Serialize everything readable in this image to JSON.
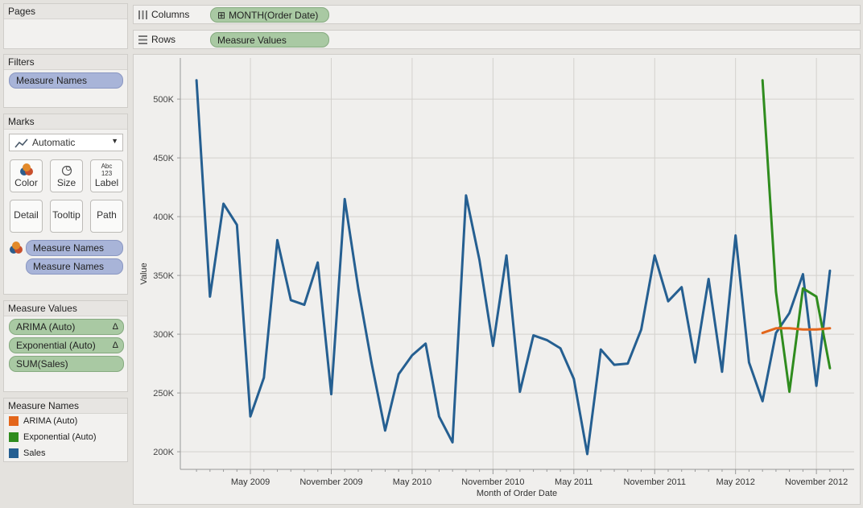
{
  "pages": {
    "title": "Pages"
  },
  "filters": {
    "title": "Filters",
    "pill": "Measure Names"
  },
  "marks": {
    "title": "Marks",
    "dropdown": "Automatic",
    "buttons": [
      "Color",
      "Size",
      "Label",
      "Detail",
      "Tooltip",
      "Path"
    ],
    "label_icon_text": "Abc 123",
    "pills": [
      "Measure Names",
      "Measure Names"
    ]
  },
  "measure_values": {
    "title": "Measure Values",
    "pills": [
      "ARIMA (Auto)",
      "Exponential (Auto)",
      "SUM(Sales)"
    ],
    "delta_glyph": "Δ"
  },
  "legend": {
    "title": "Measure Names",
    "items": [
      {
        "label": "ARIMA (Auto)",
        "color": "#e3661b"
      },
      {
        "label": "Exponential (Auto)",
        "color": "#2f8c1e"
      },
      {
        "label": "Sales",
        "color": "#255f91"
      }
    ]
  },
  "columns_shelf": {
    "label": "Columns",
    "pill": "MONTH(Order Date)",
    "pill_prefix": "⊞"
  },
  "rows_shelf": {
    "label": "Rows",
    "pill": "Measure Values"
  },
  "chart_data": {
    "type": "line",
    "xlabel": "Month of Order Date",
    "ylabel": "Value",
    "ylim": [
      185000,
      535000
    ],
    "yticks": [
      200000,
      250000,
      300000,
      350000,
      400000,
      450000,
      500000
    ],
    "ytick_labels": [
      "200K",
      "250K",
      "300K",
      "350K",
      "400K",
      "450K",
      "500K"
    ],
    "xticks": [
      "May 2009",
      "November 2009",
      "May 2010",
      "November 2010",
      "May 2011",
      "November 2011",
      "May 2012",
      "November 2012"
    ],
    "x_tick_month_index": [
      4,
      10,
      16,
      22,
      28,
      34,
      40,
      46
    ],
    "x_range_month_index": [
      -1.2,
      48.8
    ],
    "grid": true,
    "series": [
      {
        "name": "Sales",
        "color": "#255f91",
        "start_index": 0,
        "values": [
          516000,
          332000,
          411000,
          393000,
          230000,
          263000,
          380000,
          329000,
          325000,
          361000,
          249000,
          415000,
          339000,
          275000,
          218000,
          266000,
          282000,
          292000,
          230000,
          208000,
          418000,
          363000,
          290000,
          367000,
          251000,
          299000,
          295000,
          288000,
          262000,
          198000,
          287000,
          274000,
          275000,
          304000,
          367000,
          328000,
          340000,
          276000,
          347000,
          268000,
          384000,
          276000,
          243000,
          301000,
          318000,
          351000,
          256000,
          354000
        ]
      },
      {
        "name": "Exponential (Auto)",
        "color": "#2f8c1e",
        "start_index": 42,
        "values": [
          516000,
          336000,
          251000,
          339000,
          332000,
          271000
        ]
      },
      {
        "name": "ARIMA (Auto)",
        "color": "#e3661b",
        "start_index": 42,
        "values": [
          301000,
          305000,
          305000,
          304000,
          304000,
          305000
        ]
      }
    ]
  }
}
